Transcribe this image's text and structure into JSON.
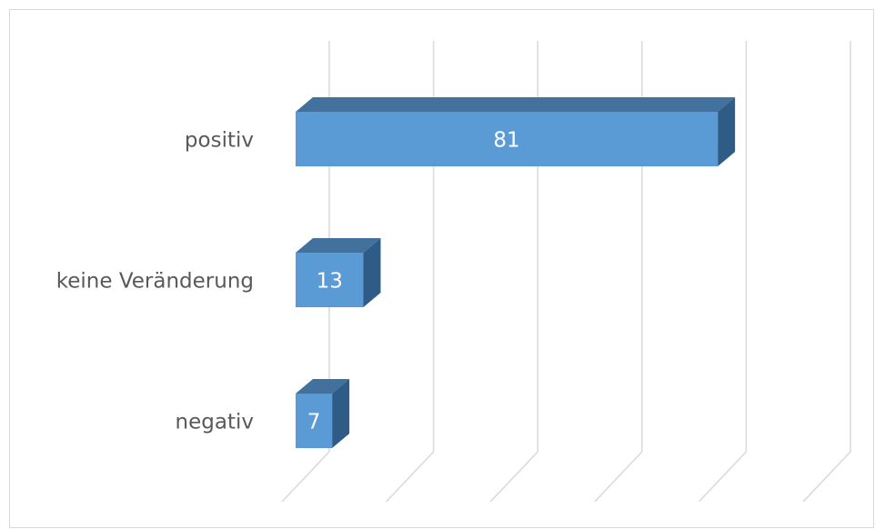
{
  "chart_data": {
    "type": "bar3d-horizontal",
    "categories": [
      "positiv",
      "keine Veränderung",
      "negativ"
    ],
    "values": [
      81,
      13,
      7
    ],
    "color": "#5b9bd5",
    "xlim": [
      0,
      100
    ],
    "xticks": [
      0,
      20,
      40,
      60,
      80,
      100
    ],
    "grid": true
  }
}
